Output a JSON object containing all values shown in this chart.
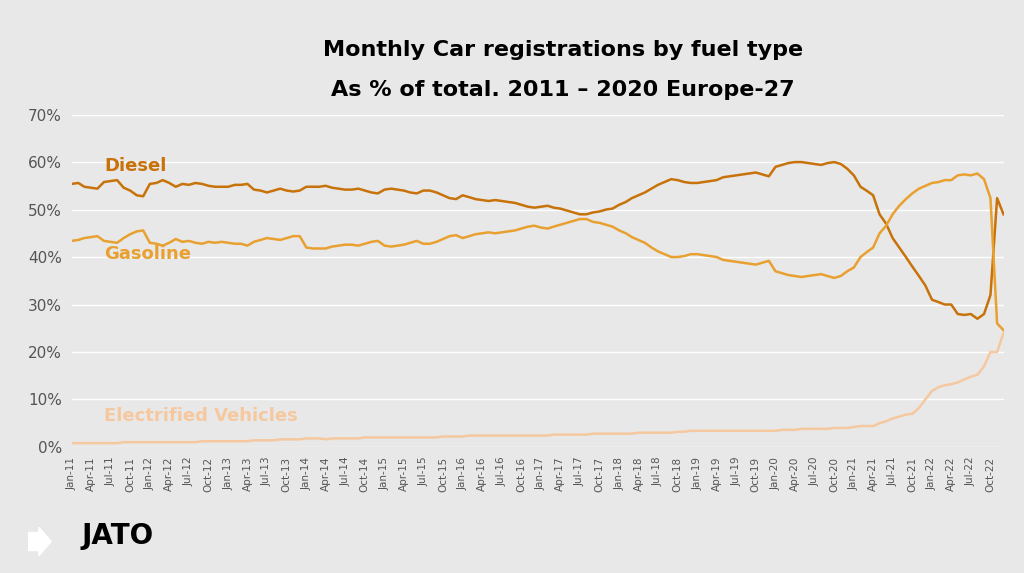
{
  "title_line1": "Monthly Car registrations by fuel type",
  "title_line2": "As % of total. 2011 – 2020 Europe-27",
  "background_color": "#e8e8e8",
  "plot_background_color": "#e8e8e8",
  "diesel_color": "#c8720a",
  "gasoline_color": "#e8a030",
  "ev_color": "#f5c8a0",
  "ylim": [
    0,
    0.7
  ],
  "yticks": [
    0.0,
    0.1,
    0.2,
    0.3,
    0.4,
    0.5,
    0.6,
    0.7
  ],
  "ytick_labels": [
    "0%",
    "10%",
    "20%",
    "30%",
    "40%",
    "50%",
    "60%",
    "70%"
  ],
  "diesel_label": "Diesel",
  "gasoline_label": "Gasoline",
  "ev_label": "Electrified Vehicles",
  "diesel_data": [
    0.554,
    0.556,
    0.548,
    0.546,
    0.544,
    0.558,
    0.56,
    0.562,
    0.546,
    0.54,
    0.53,
    0.528,
    0.554,
    0.556,
    0.562,
    0.556,
    0.548,
    0.554,
    0.552,
    0.556,
    0.554,
    0.55,
    0.548,
    0.548,
    0.548,
    0.552,
    0.552,
    0.554,
    0.542,
    0.54,
    0.536,
    0.54,
    0.544,
    0.54,
    0.538,
    0.54,
    0.548,
    0.548,
    0.548,
    0.55,
    0.546,
    0.544,
    0.542,
    0.542,
    0.544,
    0.54,
    0.536,
    0.534,
    0.542,
    0.544,
    0.542,
    0.54,
    0.536,
    0.534,
    0.54,
    0.54,
    0.536,
    0.53,
    0.524,
    0.522,
    0.53,
    0.526,
    0.522,
    0.52,
    0.518,
    0.52,
    0.518,
    0.516,
    0.514,
    0.51,
    0.506,
    0.504,
    0.506,
    0.508,
    0.504,
    0.502,
    0.498,
    0.494,
    0.49,
    0.49,
    0.494,
    0.496,
    0.5,
    0.502,
    0.51,
    0.516,
    0.524,
    0.53,
    0.536,
    0.544,
    0.552,
    0.558,
    0.564,
    0.562,
    0.558,
    0.556,
    0.556,
    0.558,
    0.56,
    0.562,
    0.568,
    0.57,
    0.572,
    0.574,
    0.576,
    0.578,
    0.574,
    0.57,
    0.59,
    0.594,
    0.598,
    0.6,
    0.6,
    0.598,
    0.596,
    0.594,
    0.598,
    0.6,
    0.596,
    0.586,
    0.572,
    0.548,
    0.54,
    0.53,
    0.49,
    0.47,
    0.44,
    0.42,
    0.4,
    0.38,
    0.36,
    0.34,
    0.31,
    0.305,
    0.3,
    0.3,
    0.28,
    0.278,
    0.28,
    0.27,
    0.28,
    0.32,
    0.524,
    0.49
  ],
  "gasoline_data": [
    0.434,
    0.436,
    0.44,
    0.442,
    0.444,
    0.434,
    0.432,
    0.43,
    0.44,
    0.448,
    0.454,
    0.456,
    0.43,
    0.428,
    0.424,
    0.43,
    0.438,
    0.432,
    0.434,
    0.43,
    0.428,
    0.432,
    0.43,
    0.432,
    0.43,
    0.428,
    0.428,
    0.424,
    0.432,
    0.436,
    0.44,
    0.438,
    0.436,
    0.44,
    0.444,
    0.444,
    0.42,
    0.418,
    0.418,
    0.418,
    0.422,
    0.424,
    0.426,
    0.426,
    0.424,
    0.428,
    0.432,
    0.434,
    0.424,
    0.422,
    0.424,
    0.426,
    0.43,
    0.434,
    0.428,
    0.428,
    0.432,
    0.438,
    0.444,
    0.446,
    0.44,
    0.444,
    0.448,
    0.45,
    0.452,
    0.45,
    0.452,
    0.454,
    0.456,
    0.46,
    0.464,
    0.466,
    0.462,
    0.46,
    0.464,
    0.468,
    0.472,
    0.476,
    0.48,
    0.48,
    0.474,
    0.472,
    0.468,
    0.464,
    0.456,
    0.45,
    0.442,
    0.436,
    0.43,
    0.42,
    0.412,
    0.406,
    0.4,
    0.4,
    0.402,
    0.406,
    0.406,
    0.404,
    0.402,
    0.4,
    0.394,
    0.392,
    0.39,
    0.388,
    0.386,
    0.384,
    0.388,
    0.392,
    0.37,
    0.366,
    0.362,
    0.36,
    0.358,
    0.36,
    0.362,
    0.364,
    0.36,
    0.356,
    0.36,
    0.37,
    0.378,
    0.4,
    0.41,
    0.42,
    0.45,
    0.466,
    0.49,
    0.508,
    0.522,
    0.534,
    0.544,
    0.55,
    0.556,
    0.558,
    0.562,
    0.562,
    0.572,
    0.574,
    0.572,
    0.576,
    0.564,
    0.524,
    0.26,
    0.246
  ],
  "ev_data": [
    0.008,
    0.008,
    0.008,
    0.008,
    0.008,
    0.008,
    0.008,
    0.008,
    0.01,
    0.01,
    0.01,
    0.01,
    0.01,
    0.01,
    0.01,
    0.01,
    0.01,
    0.01,
    0.01,
    0.01,
    0.012,
    0.012,
    0.012,
    0.012,
    0.012,
    0.012,
    0.012,
    0.012,
    0.014,
    0.014,
    0.014,
    0.014,
    0.016,
    0.016,
    0.016,
    0.016,
    0.018,
    0.018,
    0.018,
    0.016,
    0.018,
    0.018,
    0.018,
    0.018,
    0.018,
    0.02,
    0.02,
    0.02,
    0.02,
    0.02,
    0.02,
    0.02,
    0.02,
    0.02,
    0.02,
    0.02,
    0.02,
    0.022,
    0.022,
    0.022,
    0.022,
    0.024,
    0.024,
    0.024,
    0.024,
    0.024,
    0.024,
    0.024,
    0.024,
    0.024,
    0.024,
    0.024,
    0.024,
    0.024,
    0.026,
    0.026,
    0.026,
    0.026,
    0.026,
    0.026,
    0.028,
    0.028,
    0.028,
    0.028,
    0.028,
    0.028,
    0.028,
    0.03,
    0.03,
    0.03,
    0.03,
    0.03,
    0.03,
    0.032,
    0.032,
    0.034,
    0.034,
    0.034,
    0.034,
    0.034,
    0.034,
    0.034,
    0.034,
    0.034,
    0.034,
    0.034,
    0.034,
    0.034,
    0.034,
    0.036,
    0.036,
    0.036,
    0.038,
    0.038,
    0.038,
    0.038,
    0.038,
    0.04,
    0.04,
    0.04,
    0.042,
    0.044,
    0.044,
    0.044,
    0.05,
    0.054,
    0.06,
    0.064,
    0.068,
    0.07,
    0.082,
    0.1,
    0.118,
    0.126,
    0.13,
    0.132,
    0.136,
    0.142,
    0.148,
    0.152,
    0.17,
    0.2,
    0.2,
    0.24
  ]
}
